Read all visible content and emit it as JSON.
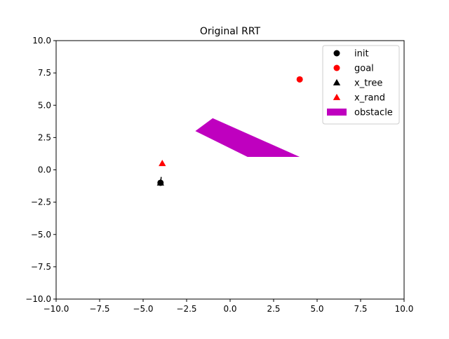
{
  "chart_data": {
    "type": "scatter",
    "title": "Original RRT",
    "xlabel": "",
    "ylabel": "",
    "xlim": [
      -10,
      10
    ],
    "ylim": [
      -10,
      10
    ],
    "x_ticks": [
      -10,
      -7.5,
      -5,
      -2.5,
      0,
      2.5,
      5,
      7.5,
      10
    ],
    "y_ticks": [
      -10,
      -7.5,
      -5,
      -2.5,
      0,
      2.5,
      5,
      7.5,
      10
    ],
    "x_tick_labels": [
      "−10.0",
      "−7.5",
      "−5.0",
      "−2.5",
      "0.0",
      "2.5",
      "5.0",
      "7.5",
      "10.0"
    ],
    "y_tick_labels": [
      "−10.0",
      "−7.5",
      "−5.0",
      "−2.5",
      "0.0",
      "2.5",
      "5.0",
      "7.5",
      "10.0"
    ],
    "grid": false,
    "legend_position": "upper-right",
    "series": [
      {
        "name": "init",
        "marker": "circle",
        "color": "#000000",
        "points": [
          [
            -4.0,
            -1.0
          ]
        ]
      },
      {
        "name": "goal",
        "marker": "circle",
        "color": "#ff0000",
        "points": [
          [
            4.0,
            7.0
          ]
        ]
      },
      {
        "name": "x_tree",
        "marker": "triangle",
        "color": "#000000",
        "points": [
          [
            -4.0,
            -1.0
          ]
        ]
      },
      {
        "name": "x_rand",
        "marker": "triangle",
        "color": "#ff0000",
        "points": [
          [
            -3.9,
            0.5
          ]
        ]
      },
      {
        "name": "obstacle",
        "marker": "patch",
        "color": "#bf00bf",
        "polygon": [
          [
            -2.0,
            3.0
          ],
          [
            -1.0,
            4.0
          ],
          [
            4.0,
            1.0
          ],
          [
            1.0,
            1.0
          ]
        ]
      }
    ],
    "tree_edges": [
      [
        [
          -4.0,
          -1.0
        ],
        [
          -3.96,
          -0.55
        ]
      ]
    ]
  }
}
